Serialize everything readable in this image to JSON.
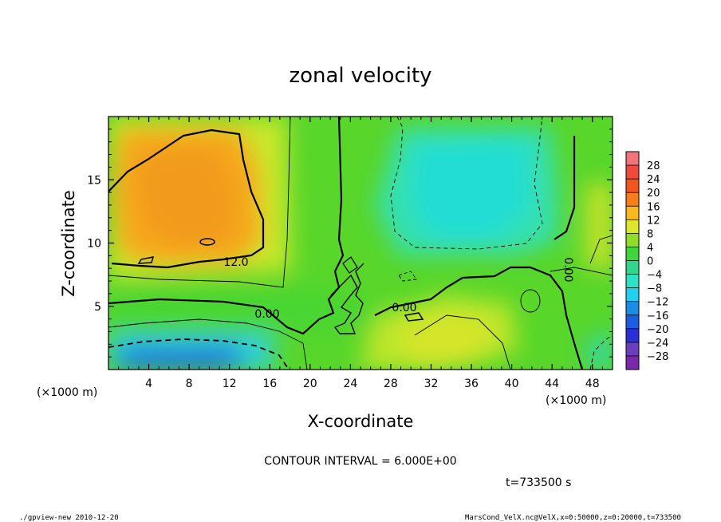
{
  "chart_data": {
    "type": "heatmap",
    "title": "zonal velocity",
    "xlabel": "X-coordinate",
    "ylabel": "Z-coordinate",
    "x_unit_label": "(×1000 m)",
    "y_unit_label": "(×1000 m)",
    "xlim": [
      0,
      50
    ],
    "ylim": [
      0,
      20
    ],
    "xticks": [
      4,
      8,
      12,
      16,
      20,
      24,
      28,
      32,
      36,
      40,
      44,
      48
    ],
    "yticks": [
      5,
      10,
      15
    ],
    "colorbar_levels": [
      28,
      24,
      20,
      16,
      12,
      8,
      4,
      0,
      -4,
      -8,
      -12,
      -16,
      -20,
      -24,
      -28
    ],
    "contour_labels": [
      "12.0",
      "0.00",
      "0.00",
      "0.00"
    ],
    "contour_interval_text": "CONTOUR INTERVAL = 6.000E+00",
    "time_text": "t=733500 s",
    "regions": [
      {
        "x": 9,
        "z": 13.5,
        "value": 16
      },
      {
        "x": 22,
        "z": 14,
        "value": 4
      },
      {
        "x": 35,
        "z": 15,
        "value": -10
      },
      {
        "x": 7,
        "z": 1,
        "value": -15
      },
      {
        "x": 34,
        "z": 3,
        "value": 7
      },
      {
        "x": 48,
        "z": 12,
        "value": 9
      }
    ]
  },
  "footer": {
    "left": "./gpview-new  2010-12-20",
    "right": "MarsCond_VelX.nc@VelX,x=0:50000,z=0:20000,t=733500"
  },
  "colors": {
    "background": "#ffffff",
    "line": "#000000"
  }
}
